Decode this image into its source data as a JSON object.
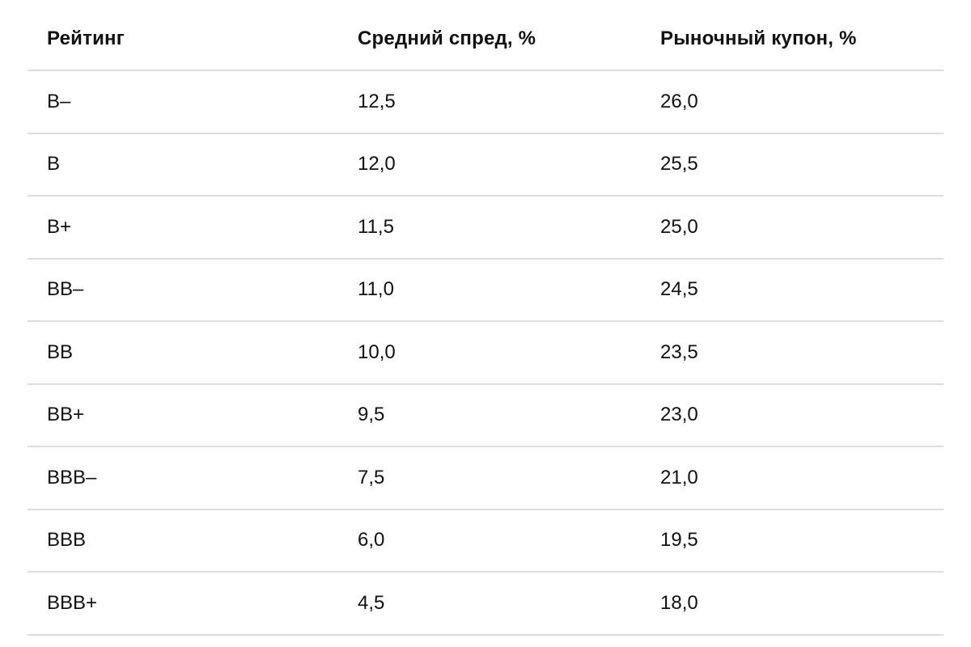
{
  "table": {
    "headers": [
      "Рейтинг",
      "Средний спред, %",
      "Рыночный купон, %"
    ],
    "rows": [
      [
        "B–",
        "12,5",
        "26,0"
      ],
      [
        "B",
        "12,0",
        "25,5"
      ],
      [
        "B+",
        "11,5",
        "25,0"
      ],
      [
        "BB–",
        "11,0",
        "24,5"
      ],
      [
        "BB",
        "10,0",
        "23,5"
      ],
      [
        "BB+",
        "9,5",
        "23,0"
      ],
      [
        "BBB–",
        "7,5",
        "21,0"
      ],
      [
        "BBB",
        "6,0",
        "19,5"
      ],
      [
        "BBB+",
        "4,5",
        "18,0"
      ]
    ]
  }
}
